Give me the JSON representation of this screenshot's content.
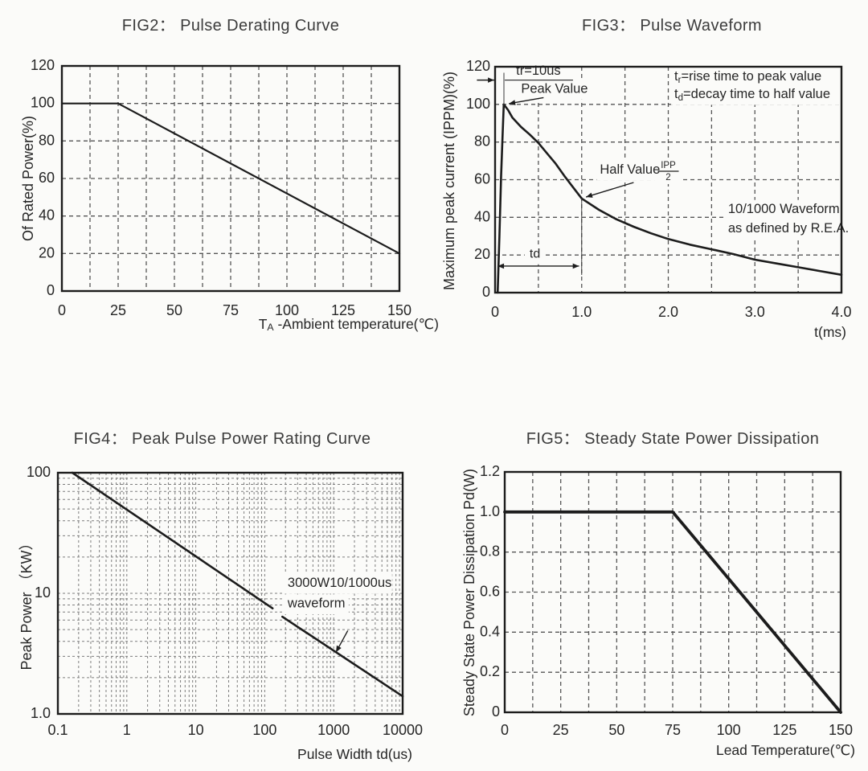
{
  "page": {
    "background": "#fbfbf9",
    "ink": "#1c1c1c",
    "grid_color": "#565656",
    "log_grid_color": "#7d7d7d",
    "title_color": "#3c3c3c"
  },
  "chart_data": [
    {
      "id": "fig2",
      "type": "line",
      "title": "FIG2： Pulse Derating Curve",
      "ylabel": "Of Rated Power(%)",
      "xlabel_segments": [
        {
          "t": "T"
        },
        {
          "t": "A",
          "sub": true
        },
        {
          "t": " -Ambient temperature(℃)"
        }
      ],
      "xlim": [
        0,
        150
      ],
      "ylim": [
        0,
        120
      ],
      "xticks": [
        {
          "v": 0,
          "l": "0"
        },
        {
          "v": 25,
          "l": "25"
        },
        {
          "v": 50,
          "l": "50"
        },
        {
          "v": 75,
          "l": "75"
        },
        {
          "v": 100,
          "l": "100"
        },
        {
          "v": 125,
          "l": "125"
        },
        {
          "v": 150,
          "l": "150"
        }
      ],
      "yticks": [
        {
          "v": 0,
          "l": "0"
        },
        {
          "v": 20,
          "l": "20"
        },
        {
          "v": 40,
          "l": "40"
        },
        {
          "v": 60,
          "l": "60"
        },
        {
          "v": 80,
          "l": "80"
        },
        {
          "v": 100,
          "l": "100"
        },
        {
          "v": 120,
          "l": "120"
        }
      ],
      "xgrid_step": 12.5,
      "ygrid_step": 20,
      "grid": "dashed",
      "legend": "none",
      "series": [
        {
          "name": "pulse-derating",
          "width": 2.2,
          "points": [
            [
              0,
              100
            ],
            [
              25,
              100
            ],
            [
              150,
              20
            ]
          ]
        }
      ],
      "annotations": []
    },
    {
      "id": "fig3",
      "type": "line",
      "title": "FIG3： Pulse Waveform",
      "ylabel": "Maximum peak current (IPPM)(%)",
      "xlabel": "t(ms)",
      "xlim": [
        0,
        4
      ],
      "ylim": [
        0,
        120
      ],
      "xticks": [
        {
          "v": 0,
          "l": "0"
        },
        {
          "v": 1,
          "l": "1.0"
        },
        {
          "v": 2,
          "l": "2.0"
        },
        {
          "v": 3,
          "l": "3.0"
        },
        {
          "v": 4,
          "l": "4.0"
        }
      ],
      "yticks": [
        {
          "v": 0,
          "l": "0"
        },
        {
          "v": 20,
          "l": "20"
        },
        {
          "v": 40,
          "l": "40"
        },
        {
          "v": 60,
          "l": "60"
        },
        {
          "v": 80,
          "l": "80"
        },
        {
          "v": 100,
          "l": "100"
        },
        {
          "v": 120,
          "l": "120"
        }
      ],
      "xgrid_step": 0.5,
      "ygrid_step": 20,
      "grid": "dashed",
      "legend": "none",
      "series": [
        {
          "name": "pulse-waveform",
          "width": 2.6,
          "points": [
            [
              0.03,
              0
            ],
            [
              0.05,
              30
            ],
            [
              0.07,
              62
            ],
            [
              0.085,
              82
            ],
            [
              0.1,
              100
            ],
            [
              0.15,
              97
            ],
            [
              0.2,
              93
            ],
            [
              0.3,
              88
            ],
            [
              0.4,
              84
            ],
            [
              0.5,
              79.5
            ],
            [
              0.6,
              74
            ],
            [
              0.7,
              68.5
            ],
            [
              0.8,
              62
            ],
            [
              0.9,
              56
            ],
            [
              1.0,
              50
            ],
            [
              1.2,
              44
            ],
            [
              1.4,
              39
            ],
            [
              1.6,
              35
            ],
            [
              1.8,
              31.5
            ],
            [
              2.0,
              28.5
            ],
            [
              2.25,
              25.5
            ],
            [
              2.5,
              23
            ],
            [
              2.75,
              20.5
            ],
            [
              3.0,
              17.5
            ],
            [
              3.25,
              15.5
            ],
            [
              3.5,
              13.5
            ],
            [
              3.75,
              11.5
            ],
            [
              4.0,
              9.5
            ]
          ]
        }
      ],
      "annotations": [
        {
          "type": "vline",
          "x": 0.102,
          "y1": 99.5,
          "y2": 116.8
        },
        {
          "type": "arrow",
          "from": [
            -0.21,
            112.9
          ],
          "to": [
            -0.01,
            112.9
          ],
          "heads": "end"
        },
        {
          "type": "hline",
          "y": 112.9,
          "x1": 0.112,
          "x2": 0.9
        },
        {
          "type": "text",
          "x": 0.5,
          "y": 117.4,
          "text": "tr=10us",
          "anchor": "middle",
          "size": 16.5,
          "bg": true
        },
        {
          "type": "text",
          "x": 0.3,
          "y": 107.8,
          "text": "Peak Value",
          "anchor": "start",
          "size": 16.5,
          "bg": true
        },
        {
          "type": "arrow",
          "from": [
            0.56,
            103.6
          ],
          "to": [
            0.16,
            100.4
          ],
          "heads": "end"
        },
        {
          "type": "text",
          "x": 2.07,
          "y": 114.5,
          "segments": [
            {
              "t": "t"
            },
            {
              "t": "r",
              "sub": true
            },
            {
              "t": "=rise time to peak value"
            }
          ],
          "anchor": "start",
          "size": 16.5,
          "bg": true
        },
        {
          "type": "text",
          "x": 2.07,
          "y": 105.0,
          "segments": [
            {
              "t": "t"
            },
            {
              "t": "d",
              "sub": true
            },
            {
              "t": "=decay time to half value"
            }
          ],
          "anchor": "start",
          "size": 16.5,
          "bg": true
        },
        {
          "type": "text",
          "x": 1.21,
          "y": 64.9,
          "text": "Half Value",
          "anchor": "start",
          "size": 16.5,
          "bg": true
        },
        {
          "type": "fraction",
          "x": 2.0,
          "y": 64.5,
          "top": "IPP",
          "bottom": "2",
          "size": 11.5
        },
        {
          "type": "arrow",
          "from": [
            1.6,
            58.5
          ],
          "to": [
            1.05,
            50.8
          ],
          "heads": "end"
        },
        {
          "type": "text",
          "x": 2.69,
          "y": 44.0,
          "text": "10/1000 Waveform",
          "anchor": "start",
          "size": 16.5,
          "bg": true
        },
        {
          "type": "text",
          "x": 2.69,
          "y": 33.7,
          "text": "as defined by R.E.A.",
          "anchor": "start",
          "size": 16.5,
          "bg": true
        },
        {
          "type": "vline",
          "x": 1.0,
          "y1": 9.4,
          "y2": 50
        },
        {
          "type": "arrow",
          "from": [
            0.03,
            14.1
          ],
          "to": [
            0.97,
            14.1
          ],
          "heads": "both"
        },
        {
          "type": "text",
          "x": 0.46,
          "y": 20.2,
          "text": "td",
          "anchor": "middle",
          "size": 16,
          "bg": true
        }
      ]
    },
    {
      "id": "fig4",
      "type": "line",
      "title": "FIG4： Peak Pulse Power Rating Curve",
      "ylabel": "Peak Power （KW）",
      "xlabel": "Pulse Width td(us)",
      "xscale": "log",
      "yscale": "log",
      "xlim": [
        0.1,
        10000
      ],
      "ylim": [
        1,
        100
      ],
      "xticks": [
        {
          "v": 0.1,
          "l": "0.1"
        },
        {
          "v": 1,
          "l": "1"
        },
        {
          "v": 10,
          "l": "10"
        },
        {
          "v": 100,
          "l": "100"
        },
        {
          "v": 1000,
          "l": "1000"
        },
        {
          "v": 10000,
          "l": "10000"
        }
      ],
      "yticks": [
        {
          "v": 1,
          "l": "1.0"
        },
        {
          "v": 10,
          "l": "10"
        },
        {
          "v": 100,
          "l": "100"
        }
      ],
      "grid": "dashed-log",
      "legend": "none",
      "series": [
        {
          "name": "peak-pulse-power-a",
          "width": 2.6,
          "points": [
            [
              0.162,
              100
            ],
            [
              130,
              7.5
            ]
          ]
        },
        {
          "name": "peak-pulse-power-b",
          "width": 2.6,
          "points": [
            [
              180,
              6.4
            ],
            [
              10000,
              1.4
            ]
          ]
        }
      ],
      "annotations": [
        {
          "type": "text",
          "x": 215,
          "y": 12.0,
          "text": "3000W10/1000us",
          "anchor": "start",
          "size": 16.5,
          "bg": true
        },
        {
          "type": "text",
          "x": 215,
          "y": 8.1,
          "text": "waveform",
          "anchor": "start",
          "size": 16.5,
          "bg": true
        },
        {
          "type": "arrow",
          "from": [
            1600,
            4.9
          ],
          "to": [
            1080,
            3.25
          ],
          "heads": "end"
        }
      ]
    },
    {
      "id": "fig5",
      "type": "line",
      "title": "FIG5： Steady State Power Dissipation",
      "ylabel": "Steady State Power Dissipation Pd(W)",
      "xlabel": "Lead Temperature(℃)",
      "xlim": [
        0,
        150
      ],
      "ylim": [
        0,
        1.2
      ],
      "xticks": [
        {
          "v": 0,
          "l": "0"
        },
        {
          "v": 25,
          "l": "25"
        },
        {
          "v": 50,
          "l": "50"
        },
        {
          "v": 75,
          "l": "75"
        },
        {
          "v": 100,
          "l": "100"
        },
        {
          "v": 125,
          "l": "125"
        },
        {
          "v": 150,
          "l": "150"
        }
      ],
      "yticks": [
        {
          "v": 0,
          "l": "0"
        },
        {
          "v": 0.2,
          "l": "0.2"
        },
        {
          "v": 0.4,
          "l": "0.4"
        },
        {
          "v": 0.6,
          "l": "0.6"
        },
        {
          "v": 0.8,
          "l": "0.8"
        },
        {
          "v": 1.0,
          "l": "1.0"
        },
        {
          "v": 1.2,
          "l": "1.2"
        }
      ],
      "xgrid_step": 12.5,
      "ygrid_step": 0.2,
      "grid": "dashed",
      "legend": "none",
      "series": [
        {
          "name": "steady-state-power",
          "width": 3.8,
          "points": [
            [
              0,
              1.0
            ],
            [
              75,
              1.0
            ],
            [
              150,
              0
            ]
          ]
        }
      ],
      "annotations": []
    }
  ]
}
